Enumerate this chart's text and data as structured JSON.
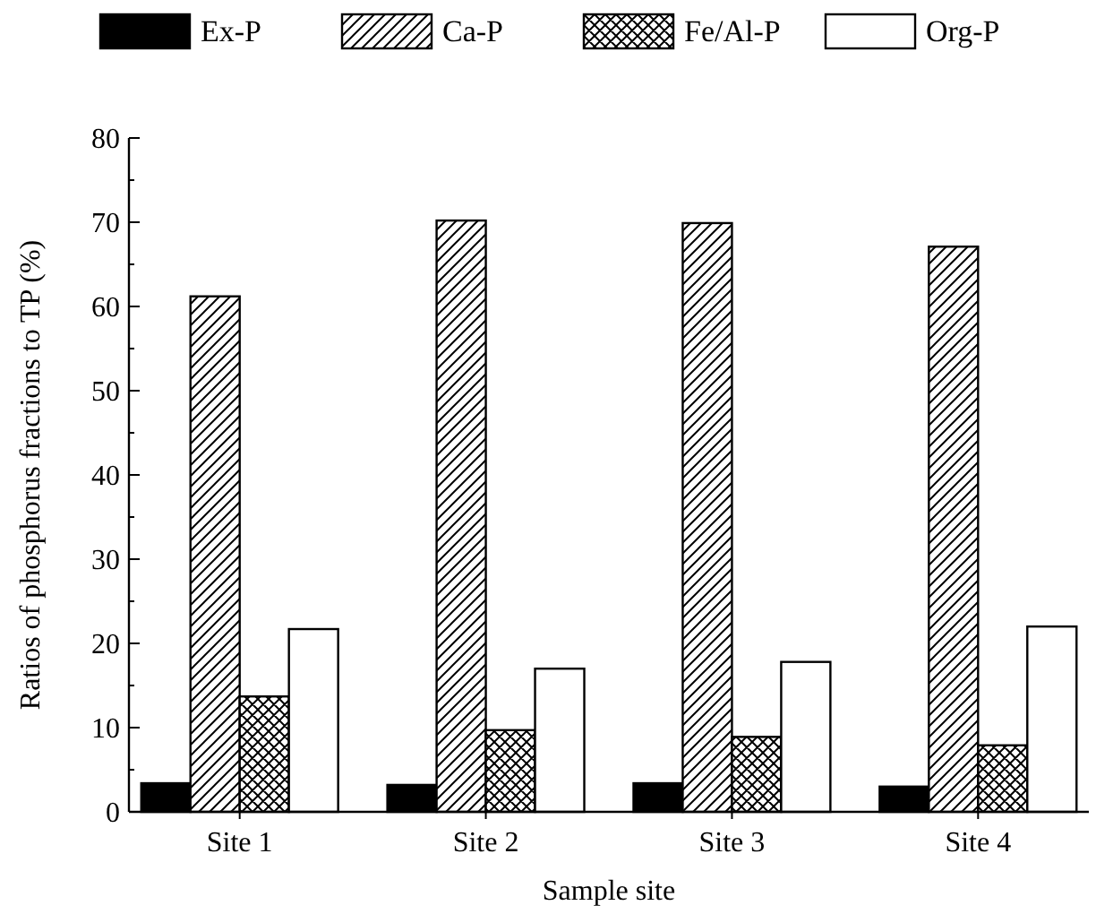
{
  "chart_data": {
    "type": "bar",
    "xlabel": "Sample site",
    "ylabel": "Ratios of phosphorus fractions to TP (%)",
    "categories": [
      "Site 1",
      "Site 2",
      "Site 3",
      "Site 4"
    ],
    "series": [
      {
        "name": "Ex-P",
        "color": "#000000",
        "values": [
          3.4,
          3.2,
          3.4,
          3.0
        ]
      },
      {
        "name": "Ca-P",
        "color": "#000000",
        "values": [
          61.2,
          70.2,
          69.9,
          67.1
        ]
      },
      {
        "name": "Fe/Al-P",
        "color": "#000000",
        "values": [
          13.7,
          9.7,
          8.9,
          7.9
        ]
      },
      {
        "name": "Org-P",
        "color": "#ffffff",
        "values": [
          21.7,
          17.0,
          17.8,
          22.0
        ]
      }
    ],
    "ylim": [
      0,
      80
    ],
    "yticks": [
      0,
      {
        "value": 5,
        "label": null
      },
      10,
      {
        "value": 15,
        "label": null
      },
      20,
      {
        "value": 25,
        "label": null
      },
      30,
      {
        "value": 35,
        "label": null
      },
      40,
      {
        "value": 45,
        "label": null
      },
      50,
      {
        "value": 55,
        "label": null
      },
      60,
      {
        "value": 65,
        "label": null
      },
      70,
      {
        "value": 75,
        "label": null
      },
      80
    ],
    "legend": "top",
    "grid": false
  }
}
